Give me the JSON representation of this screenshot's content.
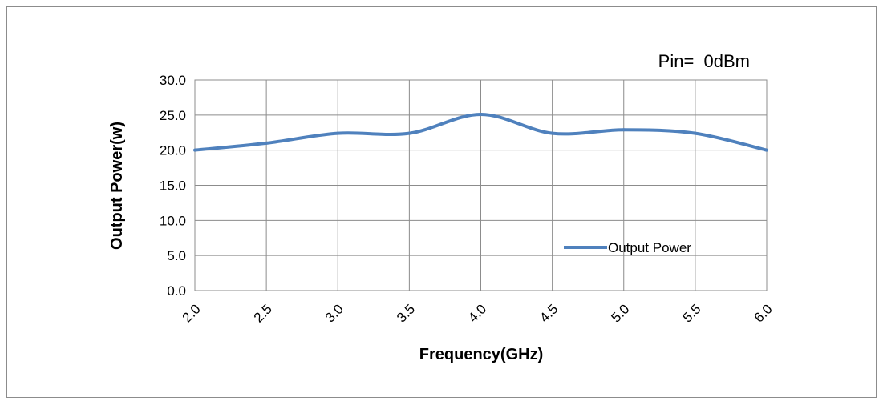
{
  "chart_data": {
    "type": "line",
    "annotation": "Pin=  0dBm",
    "xlabel": "Frequency(GHz)",
    "ylabel": "Output Power(w)",
    "x_tick_labels": [
      "2.0",
      "2.5",
      "3.0",
      "3.5",
      "4.0",
      "4.5",
      "5.0",
      "5.5",
      "6.0"
    ],
    "y_tick_labels": [
      "0.0",
      "5.0",
      "10.0",
      "15.0",
      "20.0",
      "25.0",
      "30.0"
    ],
    "xlim": [
      2.0,
      6.0
    ],
    "ylim": [
      0,
      30
    ],
    "grid": true,
    "legend_position": "right",
    "series": [
      {
        "name": "Output Power",
        "color": "#4f81bd",
        "x": [
          2.0,
          2.5,
          3.0,
          3.5,
          4.0,
          4.5,
          5.0,
          5.5,
          6.0
        ],
        "values": [
          20.0,
          21.0,
          22.4,
          22.4,
          25.1,
          22.4,
          22.9,
          22.4,
          20.0
        ]
      }
    ]
  }
}
